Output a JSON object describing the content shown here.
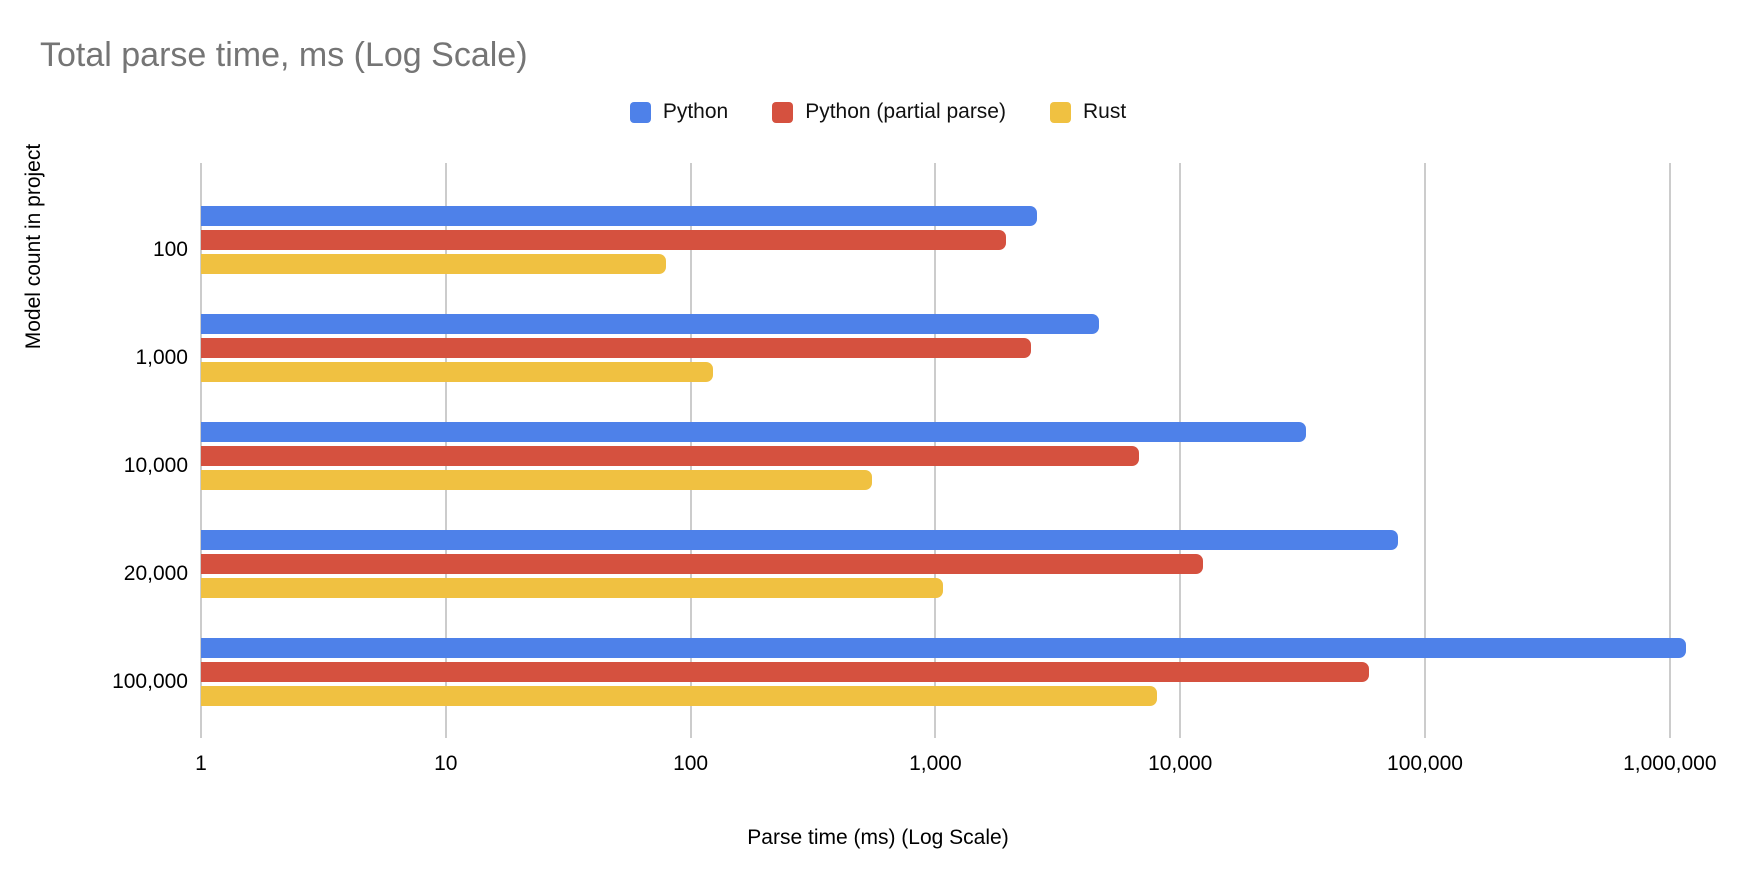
{
  "chart_data": {
    "type": "bar",
    "orientation": "horizontal",
    "x_scale": "log",
    "title": "Total parse time, ms (Log Scale)",
    "xlabel": "Parse time (ms) (Log Scale)",
    "ylabel": "Model count in project",
    "legend_position": "top",
    "grid": "vertical",
    "xlim": [
      1,
      1000000
    ],
    "x_ticks": [
      {
        "value": 1,
        "label": "1"
      },
      {
        "value": 10,
        "label": "10"
      },
      {
        "value": 100,
        "label": "100"
      },
      {
        "value": 1000,
        "label": "1,000"
      },
      {
        "value": 10000,
        "label": "10,000"
      },
      {
        "value": 100000,
        "label": "100,000"
      },
      {
        "value": 1000000,
        "label": "1,000,000"
      }
    ],
    "categories": [
      "100",
      "1,000",
      "10,000",
      "20,000",
      "100,000"
    ],
    "series": [
      {
        "name": "Python",
        "color": "#4e81e9",
        "values": [
          2600,
          4650,
          32500,
          77500,
          1170000
        ]
      },
      {
        "name": "Python (partial parse)",
        "color": "#d5513f",
        "values": [
          1950,
          2450,
          6800,
          12400,
          59000
        ]
      },
      {
        "name": "Rust",
        "color": "#f0c141",
        "values": [
          79,
          124,
          550,
          1070,
          8050
        ]
      }
    ]
  },
  "colors": {
    "title_text": "#757575",
    "axis_text": "#000000",
    "gridline": "#cccccc",
    "background": "#ffffff"
  }
}
